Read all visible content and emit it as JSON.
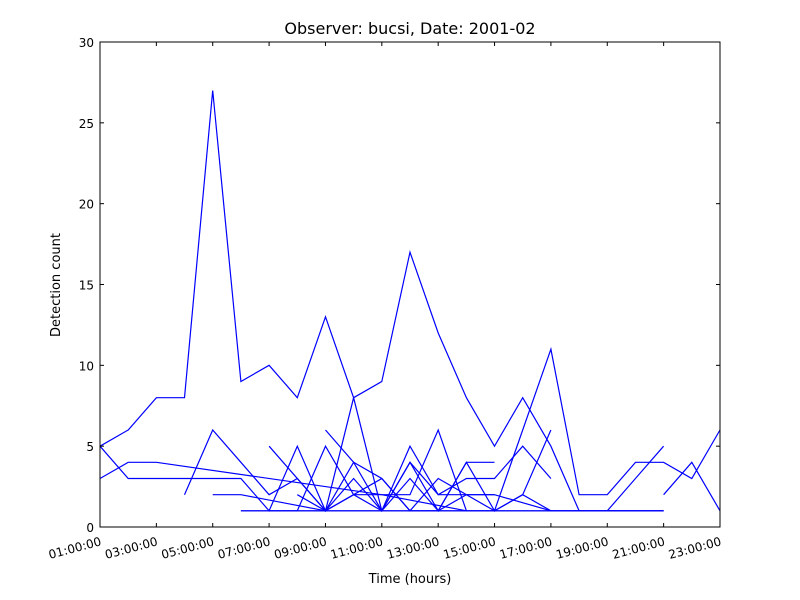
{
  "chart_data": {
    "type": "line",
    "title": "Observer: bucsi, Date: 2001-02",
    "xlabel": "Time (hours)",
    "ylabel": "Detection count",
    "xlim": [
      0,
      22
    ],
    "ylim": [
      0,
      30
    ],
    "x_ticks": [
      {
        "x": 0,
        "label": "01:00:00"
      },
      {
        "x": 2,
        "label": "03:00:00"
      },
      {
        "x": 4,
        "label": "05:00:00"
      },
      {
        "x": 6,
        "label": "07:00:00"
      },
      {
        "x": 8,
        "label": "09:00:00"
      },
      {
        "x": 10,
        "label": "11:00:00"
      },
      {
        "x": 12,
        "label": "13:00:00"
      },
      {
        "x": 14,
        "label": "15:00:00"
      },
      {
        "x": 16,
        "label": "17:00:00"
      },
      {
        "x": 18,
        "label": "19:00:00"
      },
      {
        "x": 20,
        "label": "21:00:00"
      },
      {
        "x": 22,
        "label": "23:00:00"
      }
    ],
    "y_ticks": [
      0,
      5,
      10,
      15,
      20,
      25,
      30
    ],
    "grid": false,
    "line_color": "#0000ff",
    "series": [
      {
        "points": [
          [
            0,
            5
          ],
          [
            1,
            6
          ],
          [
            2,
            8
          ],
          [
            3,
            8
          ],
          [
            4,
            27
          ],
          [
            5,
            9
          ],
          [
            6,
            10
          ],
          [
            7,
            8
          ],
          [
            8,
            13
          ],
          [
            9,
            8
          ],
          [
            10,
            9
          ],
          [
            11,
            17
          ],
          [
            12,
            12
          ],
          [
            13,
            8
          ],
          [
            14,
            5
          ],
          [
            15,
            8
          ],
          [
            16,
            5
          ],
          [
            17,
            1
          ],
          [
            20,
            1
          ]
        ]
      },
      {
        "points": [
          [
            0,
            3
          ],
          [
            1,
            4
          ],
          [
            2,
            4
          ],
          [
            10,
            2
          ],
          [
            13,
            1
          ]
        ]
      },
      {
        "points": [
          [
            0,
            5
          ],
          [
            1,
            3
          ],
          [
            5,
            3
          ],
          [
            6,
            1
          ],
          [
            7,
            5
          ],
          [
            8,
            1
          ],
          [
            9,
            4
          ],
          [
            10,
            1
          ],
          [
            11,
            4
          ],
          [
            12,
            1
          ],
          [
            13,
            4
          ],
          [
            14,
            1
          ],
          [
            16,
            11
          ],
          [
            17,
            2
          ],
          [
            18,
            2
          ],
          [
            19,
            4
          ],
          [
            20,
            4
          ],
          [
            21,
            3
          ],
          [
            22,
            6
          ]
        ]
      },
      {
        "points": [
          [
            3,
            2
          ],
          [
            4,
            6
          ],
          [
            5,
            4
          ],
          [
            6,
            2
          ],
          [
            7,
            3
          ],
          [
            8,
            1
          ],
          [
            9,
            3
          ],
          [
            10,
            1
          ],
          [
            11,
            5
          ],
          [
            12,
            2
          ],
          [
            13,
            3
          ],
          [
            14,
            3
          ],
          [
            15,
            5
          ],
          [
            16,
            3
          ]
        ]
      },
      {
        "points": [
          [
            4,
            2
          ],
          [
            5,
            2
          ],
          [
            8,
            1
          ],
          [
            10,
            1
          ],
          [
            20,
            1
          ]
        ]
      },
      {
        "points": [
          [
            6,
            5
          ],
          [
            8,
            1
          ],
          [
            9,
            8
          ],
          [
            10,
            1
          ],
          [
            11,
            3
          ],
          [
            12,
            1
          ],
          [
            13,
            4
          ],
          [
            14,
            4
          ]
        ]
      },
      {
        "points": [
          [
            6,
            1
          ],
          [
            7,
            1
          ],
          [
            8,
            5
          ],
          [
            9,
            2
          ],
          [
            10,
            1
          ],
          [
            11,
            4
          ],
          [
            12,
            2
          ],
          [
            13,
            2
          ],
          [
            14,
            1
          ],
          [
            15,
            2
          ],
          [
            16,
            6
          ]
        ]
      },
      {
        "points": [
          [
            7,
            2
          ],
          [
            8,
            1
          ],
          [
            9,
            2
          ],
          [
            10,
            3
          ],
          [
            11,
            1
          ],
          [
            12,
            1
          ],
          [
            13,
            2
          ],
          [
            14,
            2
          ],
          [
            16,
            1
          ],
          [
            18,
            1
          ],
          [
            20,
            5
          ]
        ]
      },
      {
        "points": [
          [
            5,
            1
          ],
          [
            6,
            1
          ],
          [
            7,
            1
          ],
          [
            8,
            1
          ],
          [
            9,
            2
          ],
          [
            10,
            2
          ],
          [
            11,
            2
          ],
          [
            12,
            6
          ],
          [
            13,
            1
          ],
          [
            14,
            1
          ],
          [
            15,
            2
          ],
          [
            16,
            1
          ],
          [
            20,
            1
          ]
        ]
      },
      {
        "points": [
          [
            5,
            1
          ],
          [
            9,
            1
          ],
          [
            10,
            1
          ],
          [
            20,
            1
          ]
        ]
      },
      {
        "points": [
          [
            8,
            6
          ],
          [
            9,
            4
          ],
          [
            10,
            3
          ],
          [
            11,
            1
          ],
          [
            12,
            3
          ],
          [
            13,
            2
          ],
          [
            14,
            2
          ]
        ]
      },
      {
        "points": [
          [
            20,
            2
          ],
          [
            21,
            4
          ],
          [
            22,
            1
          ]
        ]
      }
    ]
  }
}
